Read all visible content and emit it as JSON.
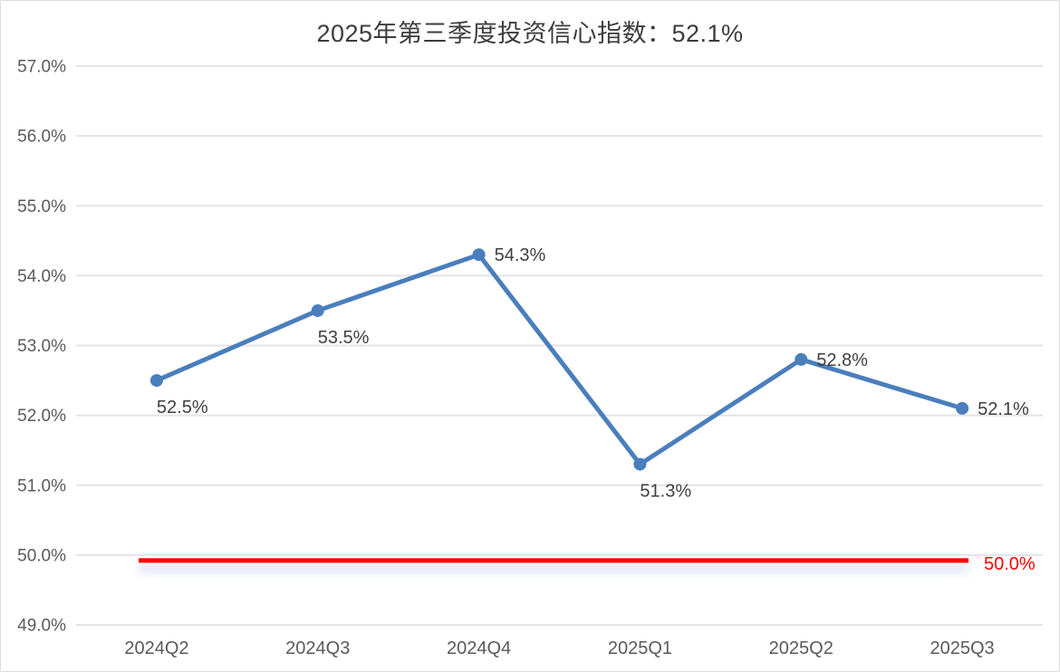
{
  "window": {
    "background": "#ffffff",
    "border_color": "#dcdcdc"
  },
  "chart_data": {
    "type": "line",
    "title": "2025年第三季度投资信心指数：52.1%",
    "categories": [
      "2024Q2",
      "2024Q3",
      "2024Q4",
      "2025Q1",
      "2025Q2",
      "2025Q3"
    ],
    "series": [
      {
        "values": [
          52.5,
          53.5,
          54.3,
          51.3,
          52.8,
          52.1
        ],
        "point_labels": [
          "52.5%",
          "53.5%",
          "54.3%",
          "51.3%",
          "52.8%",
          "52.1%"
        ],
        "label_positions": [
          "below",
          "below",
          "right",
          "below",
          "right",
          "right"
        ],
        "color": "#4a7ebd"
      }
    ],
    "xlabel": "",
    "ylabel": "",
    "ylim": [
      49.0,
      57.0
    ],
    "ytick_step": 1.0,
    "ytick_labels": [
      "57.0%",
      "56.0%",
      "55.0%",
      "54.0%",
      "53.0%",
      "52.0%",
      "51.0%",
      "50.0%",
      "49.0%"
    ],
    "grid": true,
    "legend": "none",
    "threshold": {
      "value": 50.0,
      "label": "50.0%",
      "color": "#ff0000"
    },
    "colors": {
      "line": "#4a7ebd",
      "grid": "#e4e4e6",
      "axis_text": "#5a5a5a",
      "point_label_text": "#3f3f3f",
      "title_text": "#3c3c3c"
    }
  }
}
